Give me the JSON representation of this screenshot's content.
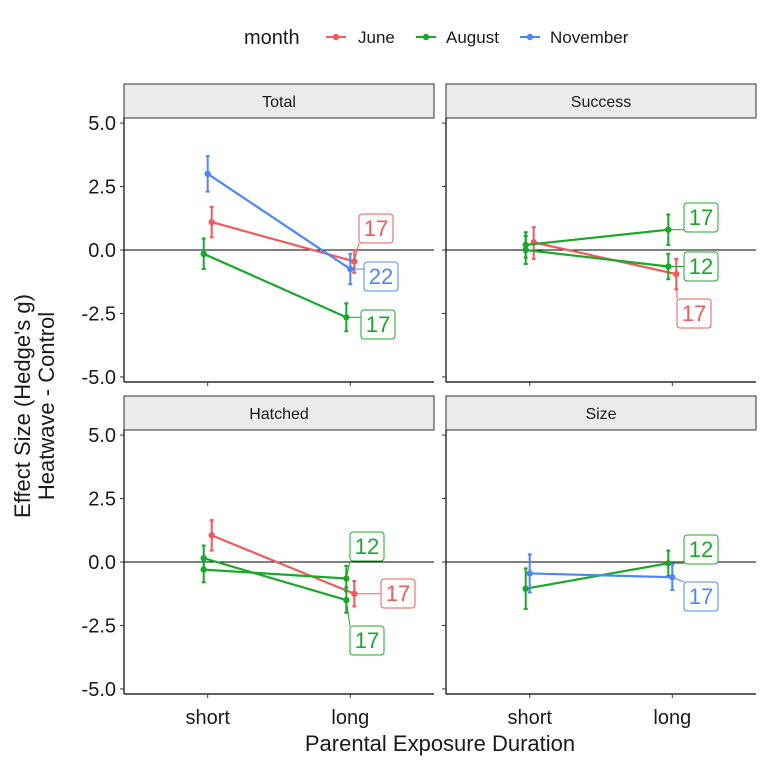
{
  "chart_data": {
    "type": "line",
    "xlabel": "Parental Exposure Duration",
    "ylabel_lines": [
      "Effect Size (Hedge's g)",
      "Heatwave - Control"
    ],
    "categories": [
      "short",
      "long"
    ],
    "ylim": [
      -5.2,
      5.2
    ],
    "yticks": [
      5.0,
      2.5,
      0.0,
      -2.5,
      -5.0
    ],
    "ytick_labels": [
      "5.0",
      "2.5",
      "0.0",
      "-2.5",
      "-5.0"
    ],
    "reference_line_y": 0,
    "legend": {
      "title": "month",
      "position": "top",
      "entries": [
        {
          "name": "June",
          "color": "#ef5a5a"
        },
        {
          "name": "August",
          "color": "#1aa82a"
        },
        {
          "name": "November",
          "color": "#4f86f7"
        }
      ]
    },
    "panels": [
      {
        "title": "Total",
        "series": [
          {
            "name": "June",
            "points": [
              {
                "x": "short",
                "y": 1.1,
                "lo": 0.5,
                "hi": 1.7
              },
              {
                "x": "long",
                "y": -0.45,
                "lo": -0.9,
                "hi": 0.0
              }
            ]
          },
          {
            "name": "August",
            "points": [
              {
                "x": "short",
                "y": -0.15,
                "lo": -0.75,
                "hi": 0.45
              },
              {
                "x": "long",
                "y": -2.65,
                "lo": -3.2,
                "hi": -2.1
              }
            ]
          },
          {
            "name": "November",
            "points": [
              {
                "x": "short",
                "y": 3.0,
                "lo": 2.3,
                "hi": 3.7
              },
              {
                "x": "long",
                "y": -0.75,
                "lo": -1.35,
                "hi": -0.15
              }
            ]
          }
        ],
        "labels": [
          {
            "series": "June",
            "text": "17"
          },
          {
            "series": "November",
            "text": "22"
          },
          {
            "series": "August",
            "text": "17"
          }
        ]
      },
      {
        "title": "Success",
        "series": [
          {
            "name": "June",
            "points": [
              {
                "x": "short",
                "y": 0.3,
                "lo": -0.35,
                "hi": 0.9
              },
              {
                "x": "long",
                "y": -0.95,
                "lo": -1.55,
                "hi": -0.35
              }
            ]
          },
          {
            "name": "August",
            "points": [
              {
                "x": "short",
                "y": 0.0,
                "lo": -0.55,
                "hi": 0.55
              },
              {
                "x": "long",
                "y": -0.65,
                "lo": -1.15,
                "hi": -0.15
              }
            ]
          },
          {
            "name": "August",
            "points": [
              {
                "x": "short",
                "y": 0.2,
                "lo": -0.3,
                "hi": 0.7
              },
              {
                "x": "long",
                "y": 0.8,
                "lo": 0.2,
                "hi": 1.4
              }
            ]
          }
        ],
        "labels": [
          {
            "series": "August",
            "text": "17"
          },
          {
            "series": "August",
            "text": "12"
          },
          {
            "series": "June",
            "text": "17"
          }
        ]
      },
      {
        "title": "Hatched",
        "series": [
          {
            "name": "June",
            "points": [
              {
                "x": "short",
                "y": 1.05,
                "lo": 0.45,
                "hi": 1.65
              },
              {
                "x": "long",
                "y": -1.25,
                "lo": -1.75,
                "hi": -0.75
              }
            ]
          },
          {
            "name": "August",
            "points": [
              {
                "x": "short",
                "y": -0.3,
                "lo": -0.8,
                "hi": 0.2
              },
              {
                "x": "long",
                "y": -0.65,
                "lo": -1.15,
                "hi": -0.15
              }
            ]
          },
          {
            "name": "August",
            "points": [
              {
                "x": "short",
                "y": 0.15,
                "lo": -0.35,
                "hi": 0.65
              },
              {
                "x": "long",
                "y": -1.5,
                "lo": -2.0,
                "hi": -1.0
              }
            ]
          }
        ],
        "labels": [
          {
            "series": "August",
            "text": "12"
          },
          {
            "series": "June",
            "text": "17"
          },
          {
            "series": "August",
            "text": "17"
          }
        ]
      },
      {
        "title": "Size",
        "series": [
          {
            "name": "August",
            "points": [
              {
                "x": "short",
                "y": -1.05,
                "lo": -1.85,
                "hi": -0.25
              },
              {
                "x": "long",
                "y": -0.05,
                "lo": -0.55,
                "hi": 0.45
              }
            ]
          },
          {
            "name": "November",
            "points": [
              {
                "x": "short",
                "y": -0.45,
                "lo": -1.2,
                "hi": 0.3
              },
              {
                "x": "long",
                "y": -0.6,
                "lo": -1.1,
                "hi": -0.1
              }
            ]
          }
        ],
        "labels": [
          {
            "series": "August",
            "text": "12"
          },
          {
            "series": "November",
            "text": "17"
          }
        ]
      }
    ]
  }
}
